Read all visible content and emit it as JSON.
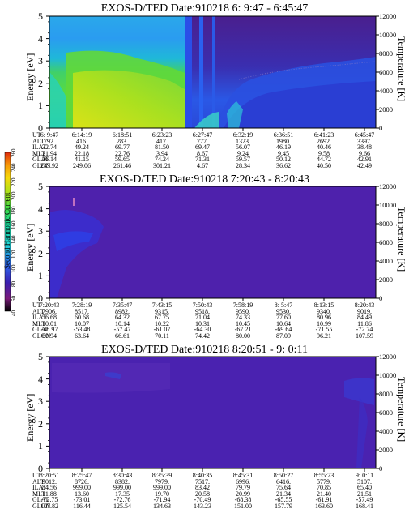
{
  "colorbar": {
    "title": "Second Harmonic Current",
    "ticks": [
      "40",
      "60",
      "80",
      "100",
      "120",
      "140",
      "160",
      "180",
      "200",
      "220",
      "240",
      "260"
    ],
    "colors": [
      "#000000",
      "#7a1a7a",
      "#5a0f8c",
      "#3a1fb0",
      "#2c3ee0",
      "#2a6cf2",
      "#23a6f0",
      "#1fd6d6",
      "#19d8a0",
      "#38d84a",
      "#8ee21a",
      "#d6e80f",
      "#f6d80a",
      "#f79a08",
      "#e02a0a"
    ]
  },
  "panels": [
    {
      "title": "EXOS-D/TED   Date:910218  6: 9:47 - 6:45:47",
      "ylabel": "Energy [eV]",
      "y2label": "Temperature [K]",
      "ytick_labels": [
        "0",
        "1",
        "2",
        "3",
        "4",
        "5"
      ],
      "y2tick_labels": [
        "0",
        "2000",
        "4000",
        "6000",
        "8000",
        "10000",
        "12000"
      ],
      "table": {
        "rows": [
          {
            "label": "UT",
            "values": [
              "6: 9:47",
              "6:14:19",
              "6:18:51",
              "6:23:23",
              "6:27:47",
              "6:32:19",
              "6:36:51",
              "6:41:23",
              "6:45:47"
            ]
          },
          {
            "label": "ALT",
            "values": [
              "792.",
              "416.",
              "283.",
              "417.",
              "777.",
              "1323.",
              "1980.",
              "2692.",
              "3397."
            ]
          },
          {
            "label": "ILAT",
            "values": [
              "32.74",
              "49.24",
              "69.77",
              "81.50",
              "69.47",
              "56.07",
              "46.19",
              "40.46",
              "38.48"
            ]
          },
          {
            "label": "MLT",
            "values": [
              "21.94",
              "22.18",
              "22.76",
              "3.94",
              "8.67",
              "9.24",
              "9.45",
              "9.58",
              "9.66"
            ]
          },
          {
            "label": "GLAT",
            "values": [
              "26.14",
              "41.15",
              "59.65",
              "74.24",
              "71.31",
              "59.57",
              "50.12",
              "44.72",
              "42.91"
            ]
          },
          {
            "label": "GLON",
            "values": [
              "243.92",
              "249.06",
              "261.46",
              "301.21",
              "4.67",
              "28.34",
              "36.62",
              "40.50",
              "42.49"
            ]
          }
        ]
      }
    },
    {
      "title": "EXOS-D/TED   Date:910218  7:20:43 - 8:20:43",
      "ylabel": "Energy [eV]",
      "y2label": "Temperature [K]",
      "ytick_labels": [
        "0",
        "1",
        "2",
        "3",
        "4",
        "5"
      ],
      "y2tick_labels": [
        "0",
        "2000",
        "4000",
        "6000",
        "8000",
        "10000",
        "12000"
      ],
      "table": {
        "rows": [
          {
            "label": "UT",
            "values": [
              "7:20:43",
              "7:28:19",
              "7:35:47",
              "7:43:15",
              "7:50:43",
              "7:58:19",
              "8: 5:47",
              "8:13:15",
              "8:20:43"
            ]
          },
          {
            "label": "ALT",
            "values": [
              "7906.",
              "8517.",
              "8982.",
              "9315.",
              "9518.",
              "9590.",
              "9530.",
              "9340.",
              "9019."
            ]
          },
          {
            "label": "ILAT",
            "values": [
              "56.68",
              "60.68",
              "64.32",
              "67.75",
              "71.04",
              "74.33",
              "77.60",
              "80.96",
              "84.49"
            ]
          },
          {
            "label": "MLT",
            "values": [
              "10.01",
              "10.07",
              "10.14",
              "10.22",
              "10.31",
              "10.45",
              "10.64",
              "10.99",
              "11.86"
            ]
          },
          {
            "label": "GLAT",
            "values": [
              "-48.97",
              "-53.48",
              "-57.47",
              "-61.07",
              "-64.30",
              "-67.21",
              "-69.64",
              "-71.55",
              "-72.74"
            ]
          },
          {
            "label": "GLON",
            "values": [
              "60.94",
              "63.64",
              "66.61",
              "70.11",
              "74.42",
              "80.00",
              "87.09",
              "96.21",
              "107.59"
            ]
          }
        ]
      }
    },
    {
      "title": "EXOS-D/TED   Date:910218  8:20:51 - 9: 0:11",
      "ylabel": "Energy [eV]",
      "y2label": "Temperature [K]",
      "ytick_labels": [
        "0",
        "1",
        "2",
        "3",
        "4",
        "5"
      ],
      "y2tick_labels": [
        "0",
        "2000",
        "4000",
        "6000",
        "8000",
        "10000",
        "12000"
      ],
      "table": {
        "rows": [
          {
            "label": "UT",
            "values": [
              "8:20:51",
              "8:25:47",
              "8:30:43",
              "8:35:39",
              "8:40:35",
              "8:45:31",
              "8:50:27",
              "8:55:23",
              "9: 0:11"
            ]
          },
          {
            "label": "ALT",
            "values": [
              "9012.",
              "8726.",
              "8382.",
              "7979.",
              "7517.",
              "6996.",
              "6416.",
              "5779.",
              "5107."
            ]
          },
          {
            "label": "ILAT",
            "values": [
              "84.56",
              "999.00",
              "999.00",
              "999.00",
              "83.42",
              "79.79",
              "75.64",
              "70.85",
              "65.40"
            ]
          },
          {
            "label": "MLT",
            "values": [
              "11.88",
              "13.60",
              "17.35",
              "19.70",
              "20.58",
              "20.99",
              "21.34",
              "21.40",
              "21.51"
            ]
          },
          {
            "label": "GLAT",
            "values": [
              "-72.75",
              "-73.01",
              "-72.76",
              "-71.94",
              "-70.49",
              "-68.38",
              "-65.55",
              "-61.91",
              "-57.49"
            ]
          },
          {
            "label": "GLON",
            "values": [
              "107.82",
              "116.44",
              "125.54",
              "134.63",
              "143.23",
              "151.00",
              "157.79",
              "163.60",
              "168.41"
            ]
          }
        ]
      }
    }
  ],
  "chart_data": [
    {
      "type": "heatmap",
      "title": "EXOS-D/TED   Date:910218  6: 9:47 - 6:45:47",
      "ylabel": "Energy [eV]",
      "y2label": "Temperature [K]",
      "ylim": [
        0,
        5
      ],
      "y2lim": [
        0,
        12000
      ],
      "colorbar_title": "Second Harmonic Current",
      "colorbar_range": [
        40,
        260
      ],
      "x": [
        "6: 9:47",
        "6:14:19",
        "6:18:51",
        "6:23:23",
        "6:27:47",
        "6:32:19",
        "6:36:51",
        "6:41:23",
        "6:45:47"
      ]
    },
    {
      "type": "heatmap",
      "title": "EXOS-D/TED   Date:910218  7:20:43 - 8:20:43",
      "ylabel": "Energy [eV]",
      "y2label": "Temperature [K]",
      "ylim": [
        0,
        5
      ],
      "y2lim": [
        0,
        12000
      ],
      "x": [
        "7:20:43",
        "7:28:19",
        "7:35:47",
        "7:43:15",
        "7:50:43",
        "7:58:19",
        "8: 5:47",
        "8:13:15",
        "8:20:43"
      ]
    },
    {
      "type": "heatmap",
      "title": "EXOS-D/TED   Date:910218  8:20:51 - 9: 0:11",
      "ylabel": "Energy [eV]",
      "y2label": "Temperature [K]",
      "ylim": [
        0,
        5
      ],
      "y2lim": [
        0,
        12000
      ],
      "x": [
        "8:20:51",
        "8:25:47",
        "8:30:43",
        "8:35:39",
        "8:40:35",
        "8:45:31",
        "8:50:27",
        "8:55:23",
        "9: 0:11"
      ]
    }
  ]
}
